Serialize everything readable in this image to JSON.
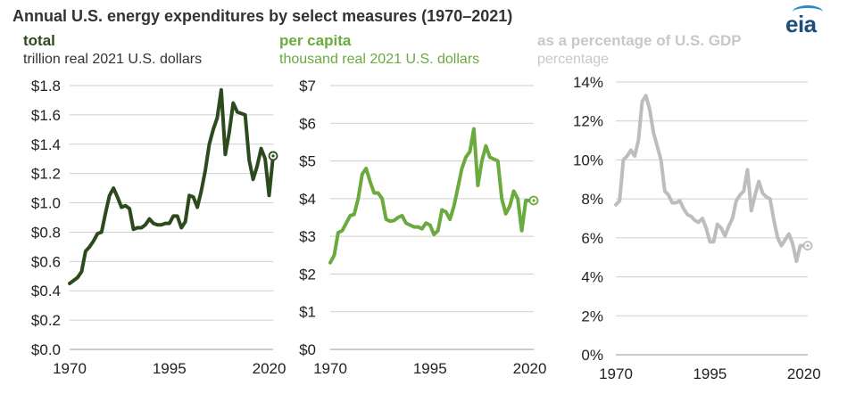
{
  "title": "Annual U.S. energy expenditures by select measures (1970–2021)",
  "logo": "eia",
  "chart_data": [
    {
      "type": "line",
      "title": "total",
      "subtitle": "trillion real 2021 U.S. dollars",
      "color": "#2d4a1e",
      "x_ticks": [
        "1970",
        "1995",
        "2020"
      ],
      "y_ticks": [
        "$0.0",
        "$0.2",
        "$0.4",
        "$0.6",
        "$0.8",
        "$1.0",
        "$1.2",
        "$1.4",
        "$1.6",
        "$1.8"
      ],
      "ylim": [
        0,
        1.8
      ],
      "xlim": [
        1970,
        2021
      ],
      "grid": true,
      "x": [
        1970,
        1971,
        1972,
        1973,
        1974,
        1975,
        1976,
        1977,
        1978,
        1979,
        1980,
        1981,
        1982,
        1983,
        1984,
        1985,
        1986,
        1987,
        1988,
        1989,
        1990,
        1991,
        1992,
        1993,
        1994,
        1995,
        1996,
        1997,
        1998,
        1999,
        2000,
        2001,
        2002,
        2003,
        2004,
        2005,
        2006,
        2007,
        2008,
        2009,
        2010,
        2011,
        2012,
        2013,
        2014,
        2015,
        2016,
        2017,
        2018,
        2019,
        2020,
        2021
      ],
      "values": [
        0.45,
        0.47,
        0.49,
        0.53,
        0.67,
        0.7,
        0.74,
        0.79,
        0.8,
        0.93,
        1.05,
        1.1,
        1.04,
        0.97,
        0.98,
        0.96,
        0.82,
        0.83,
        0.83,
        0.85,
        0.89,
        0.86,
        0.85,
        0.85,
        0.86,
        0.86,
        0.91,
        0.91,
        0.83,
        0.87,
        1.05,
        1.04,
        0.97,
        1.08,
        1.22,
        1.4,
        1.5,
        1.58,
        1.77,
        1.33,
        1.48,
        1.68,
        1.62,
        1.61,
        1.6,
        1.29,
        1.16,
        1.25,
        1.37,
        1.3,
        1.05,
        1.32
      ],
      "marker_last": true
    },
    {
      "type": "line",
      "title": "per capita",
      "subtitle": "thousand real 2021 U.S. dollars",
      "color": "#6aaa3e",
      "x_ticks": [
        "1970",
        "1995",
        "2020"
      ],
      "y_ticks": [
        "$0",
        "$1",
        "$2",
        "$3",
        "$4",
        "$5",
        "$6",
        "$7"
      ],
      "ylim": [
        0,
        7
      ],
      "xlim": [
        1970,
        2021
      ],
      "grid": true,
      "x": [
        1970,
        1971,
        1972,
        1973,
        1974,
        1975,
        1976,
        1977,
        1978,
        1979,
        1980,
        1981,
        1982,
        1983,
        1984,
        1985,
        1986,
        1987,
        1988,
        1989,
        1990,
        1991,
        1992,
        1993,
        1994,
        1995,
        1996,
        1997,
        1998,
        1999,
        2000,
        2001,
        2002,
        2003,
        2004,
        2005,
        2006,
        2007,
        2008,
        2009,
        2010,
        2011,
        2012,
        2013,
        2014,
        2015,
        2016,
        2017,
        2018,
        2019,
        2020,
        2021
      ],
      "values": [
        2.3,
        2.5,
        3.1,
        3.15,
        3.35,
        3.55,
        3.58,
        4.0,
        4.65,
        4.8,
        4.45,
        4.15,
        4.15,
        4.0,
        3.45,
        3.4,
        3.42,
        3.5,
        3.55,
        3.35,
        3.3,
        3.25,
        3.25,
        3.2,
        3.35,
        3.3,
        3.05,
        3.15,
        3.7,
        3.65,
        3.45,
        3.8,
        4.3,
        4.8,
        5.1,
        5.25,
        5.85,
        4.35,
        5.0,
        5.4,
        5.1,
        5.05,
        5.0,
        4.0,
        3.6,
        3.8,
        4.2,
        4.0,
        3.15,
        3.95,
        3.95,
        3.95
      ],
      "marker_last": true
    },
    {
      "type": "line",
      "title": "as a percentage of U.S. GDP",
      "subtitle": "percentage",
      "color": "#bdbdbd",
      "x_ticks": [
        "1970",
        "1995",
        "2020"
      ],
      "y_ticks": [
        "0%",
        "2%",
        "4%",
        "6%",
        "8%",
        "10%",
        "12%",
        "14%"
      ],
      "ylim": [
        0,
        14
      ],
      "xlim": [
        1970,
        2021
      ],
      "grid": true,
      "x": [
        1970,
        1971,
        1972,
        1973,
        1974,
        1975,
        1976,
        1977,
        1978,
        1979,
        1980,
        1981,
        1982,
        1983,
        1984,
        1985,
        1986,
        1987,
        1988,
        1989,
        1990,
        1991,
        1992,
        1993,
        1994,
        1995,
        1996,
        1997,
        1998,
        1999,
        2000,
        2001,
        2002,
        2003,
        2004,
        2005,
        2006,
        2007,
        2008,
        2009,
        2010,
        2011,
        2012,
        2013,
        2014,
        2015,
        2016,
        2017,
        2018,
        2019,
        2020,
        2021
      ],
      "values": [
        7.7,
        7.9,
        10.0,
        10.2,
        10.5,
        10.2,
        11.0,
        13.0,
        13.3,
        12.6,
        11.4,
        10.7,
        10.0,
        8.4,
        8.2,
        7.8,
        7.8,
        7.9,
        7.5,
        7.2,
        7.1,
        6.9,
        6.8,
        7.0,
        6.5,
        5.8,
        5.8,
        6.7,
        6.5,
        6.1,
        6.6,
        7.0,
        7.9,
        8.2,
        8.4,
        9.5,
        7.4,
        8.2,
        8.9,
        8.3,
        8.1,
        8.0,
        6.9,
        6.0,
        5.6,
        5.9,
        6.2,
        5.7,
        4.8,
        5.6,
        5.6,
        5.6
      ],
      "marker_last": true
    }
  ]
}
